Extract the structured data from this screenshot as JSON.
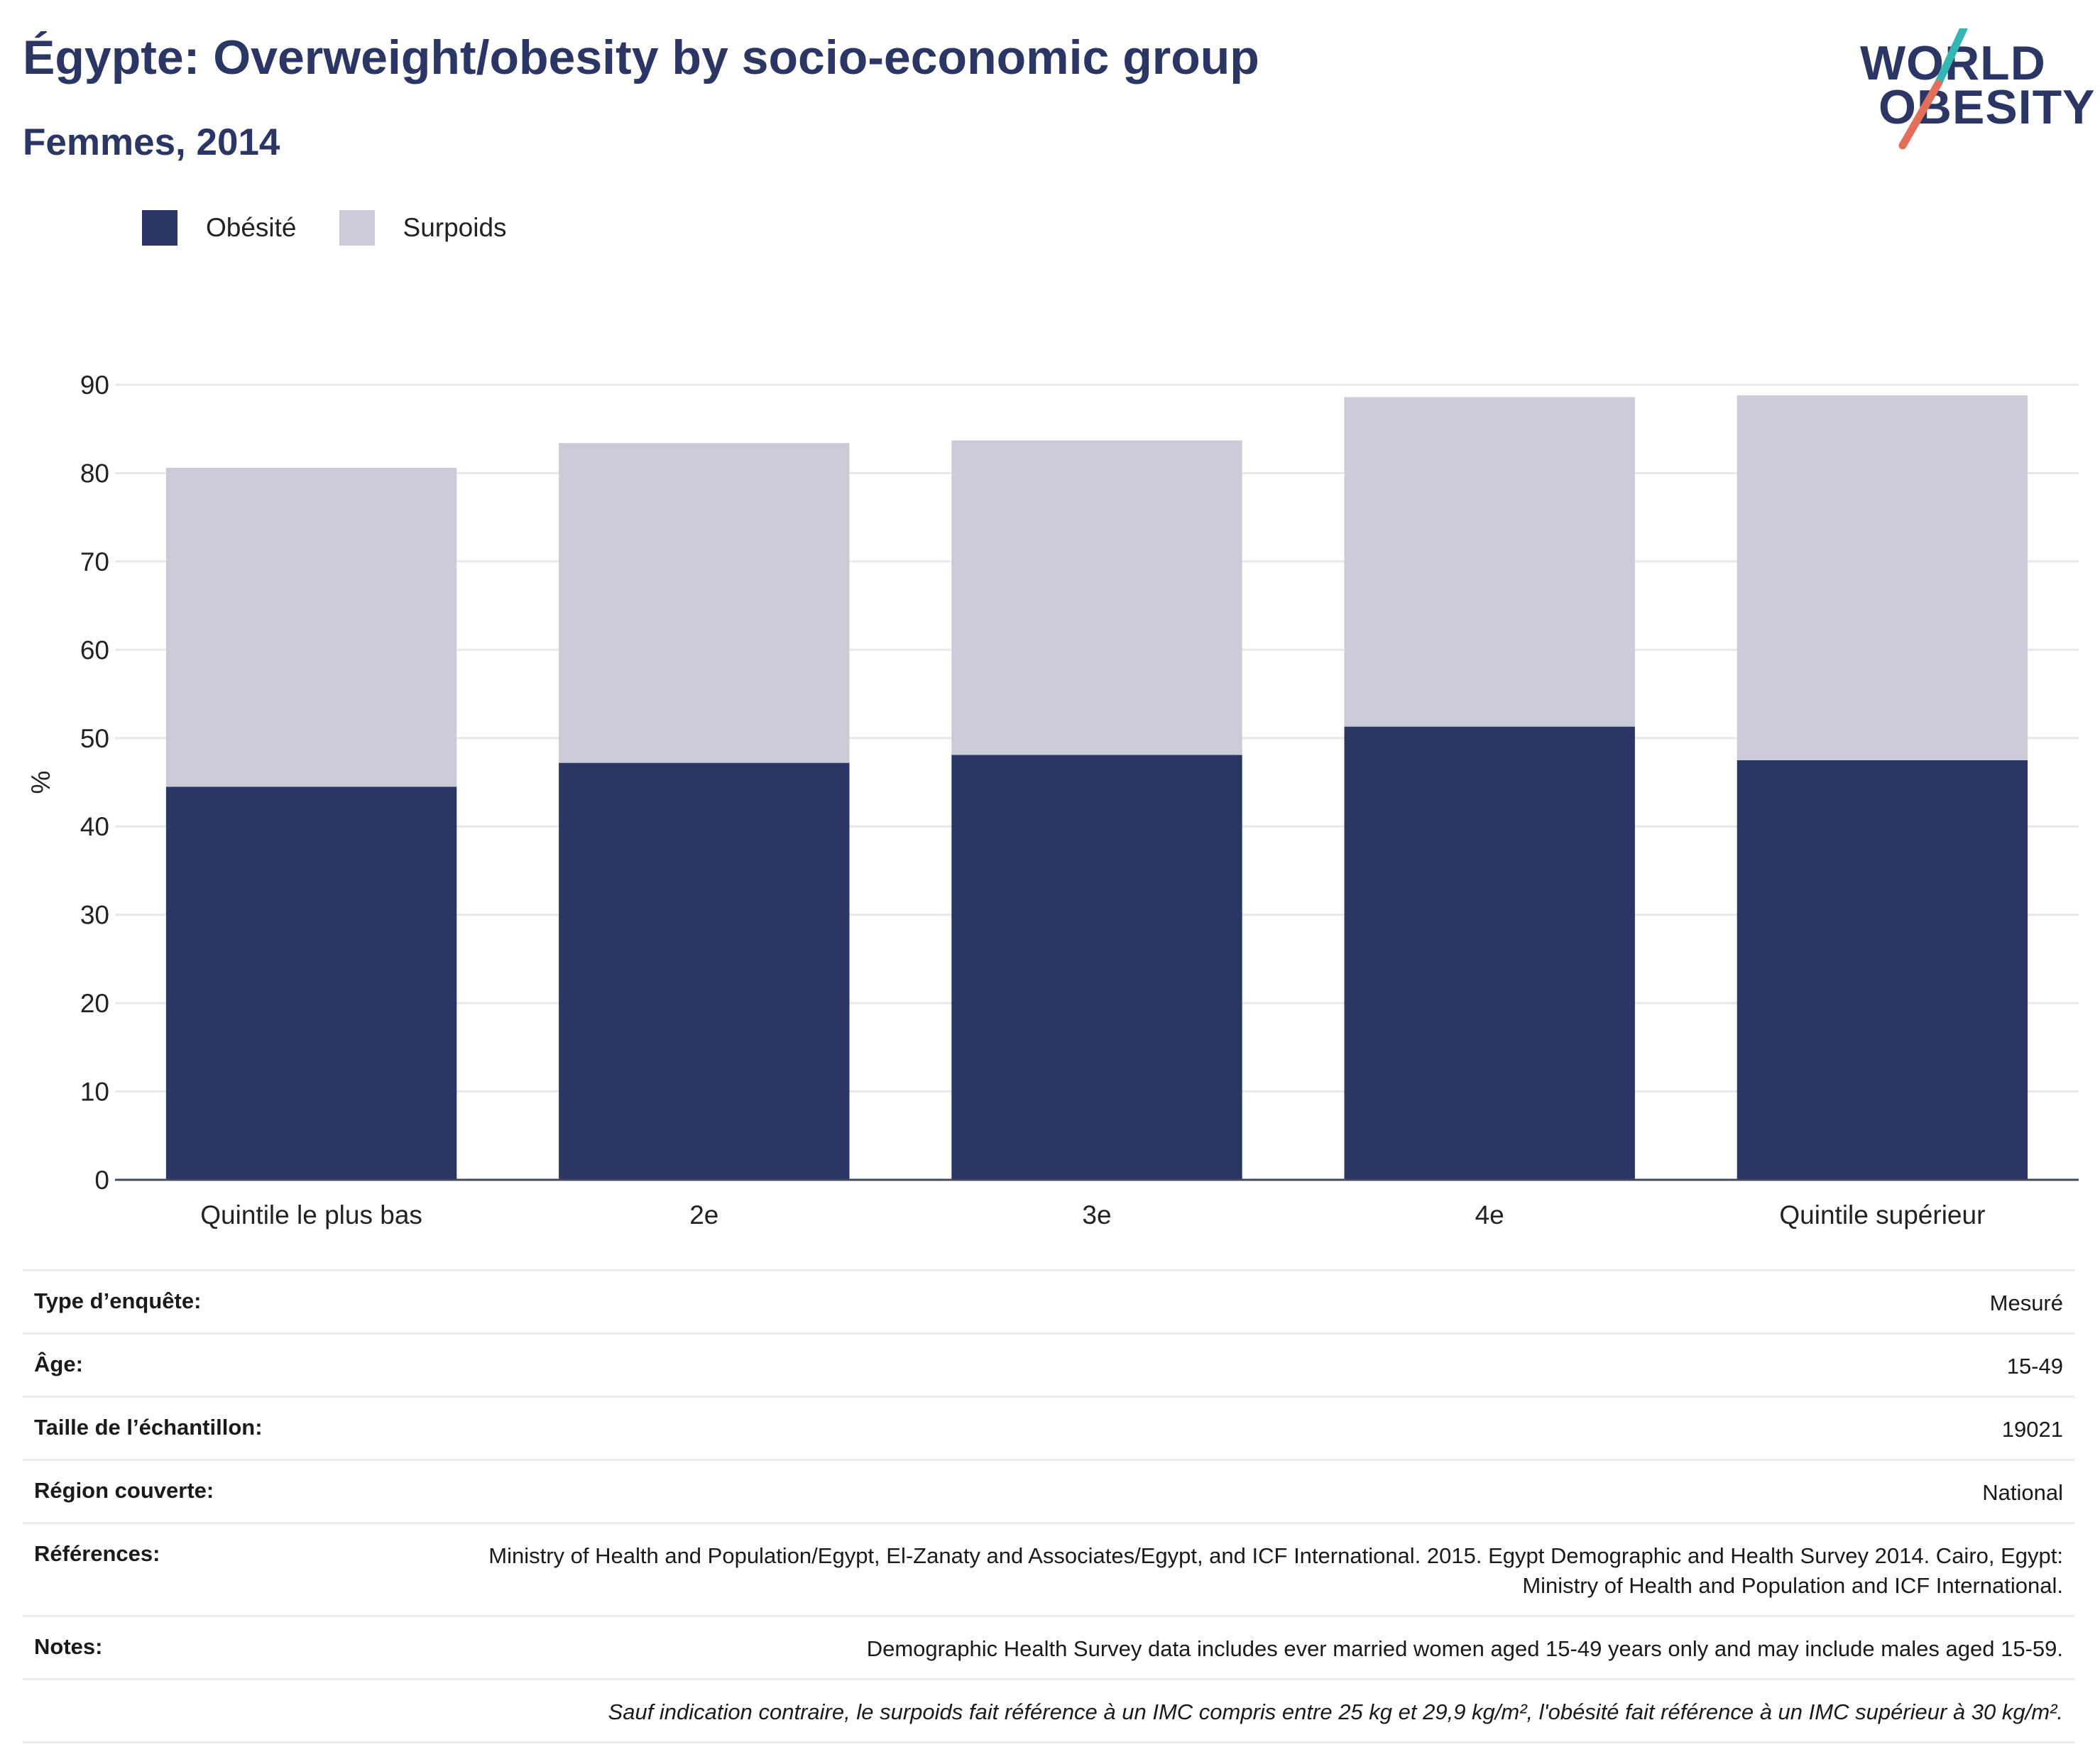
{
  "header": {
    "title": "Égypte: Overweight/obesity by socio-economic group",
    "subtitle": "Femmes, 2014"
  },
  "logo": {
    "line1": "WORLD",
    "line2": "OBESITY",
    "colors": {
      "text": "#2b3664",
      "slash_top": "#35b6b4",
      "slash_bottom": "#e36f5a"
    }
  },
  "legend": [
    {
      "label": "Obésité",
      "color": "#2b3664"
    },
    {
      "label": "Surpoids",
      "color": "#cacbd7"
    }
  ],
  "chart_data": {
    "type": "bar",
    "stacked": true,
    "categories": [
      "Quintile le plus bas",
      "2e",
      "3e",
      "4e",
      "Quintile supérieur"
    ],
    "series": [
      {
        "name": "Obésité",
        "color": "#2b3664",
        "values": [
          44.5,
          47.2,
          48.1,
          51.3,
          47.5
        ]
      },
      {
        "name": "Surpoids",
        "color": "#cacbd7",
        "values": [
          36.1,
          36.2,
          35.6,
          37.3,
          41.3
        ]
      }
    ],
    "ylabel": "%",
    "ylim": [
      0,
      90
    ],
    "yticks": [
      0,
      10,
      20,
      30,
      40,
      50,
      60,
      70,
      80,
      90
    ],
    "grid": true,
    "legend_position": "top-left"
  },
  "meta": [
    {
      "label": "Type d’enquête:",
      "value": "Mesuré"
    },
    {
      "label": "Âge:",
      "value": "15-49"
    },
    {
      "label": "Taille de l’échantillon:",
      "value": "19021"
    },
    {
      "label": "Région couverte:",
      "value": "National"
    },
    {
      "label": "Références:",
      "value": "Ministry of Health and Population/Egypt, El-Zanaty and Associates/Egypt, and ICF International. 2015. Egypt Demographic and Health Survey 2014. Cairo, Egypt: Ministry of Health and Population and ICF International."
    },
    {
      "label": "Notes:",
      "value": "Demographic Health Survey data includes ever married women aged 15-49 years only and may include males aged 15-59."
    }
  ],
  "footnote": "Sauf indication contraire, le surpoids fait référence à un IMC compris entre 25 kg et 29,9 kg/m², l'obésité fait référence à un IMC supérieur à 30 kg/m²."
}
